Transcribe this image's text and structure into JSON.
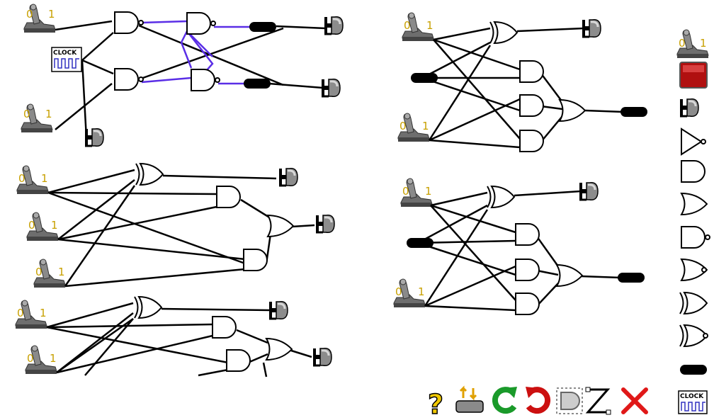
{
  "switch": {
    "off_label": "0",
    "on_label": "1"
  },
  "clock": {
    "label": "CLOCK"
  },
  "palette": {
    "items": [
      "toggle-switch",
      "push-button",
      "light-bulb",
      "not-gate",
      "and-gate",
      "or-gate",
      "nand-gate",
      "nor-gate",
      "xor-gate",
      "xnor-gate",
      "wire-connector",
      "clock"
    ],
    "switch_labels": {
      "off": "0",
      "on": "1"
    },
    "clock_label": "CLOCK"
  },
  "toolbar": {
    "help_label": "?",
    "buttons": [
      "help",
      "swap",
      "redo",
      "undo",
      "select",
      "wire-tool",
      "delete"
    ]
  },
  "colors": {
    "active_wire": "#5a2ee6",
    "help": "#f0c800",
    "redo": "#1a9a2a",
    "undo": "#cc1010",
    "delete": "#e01818",
    "push_button": "#b01010",
    "clock": "#3030c0"
  }
}
